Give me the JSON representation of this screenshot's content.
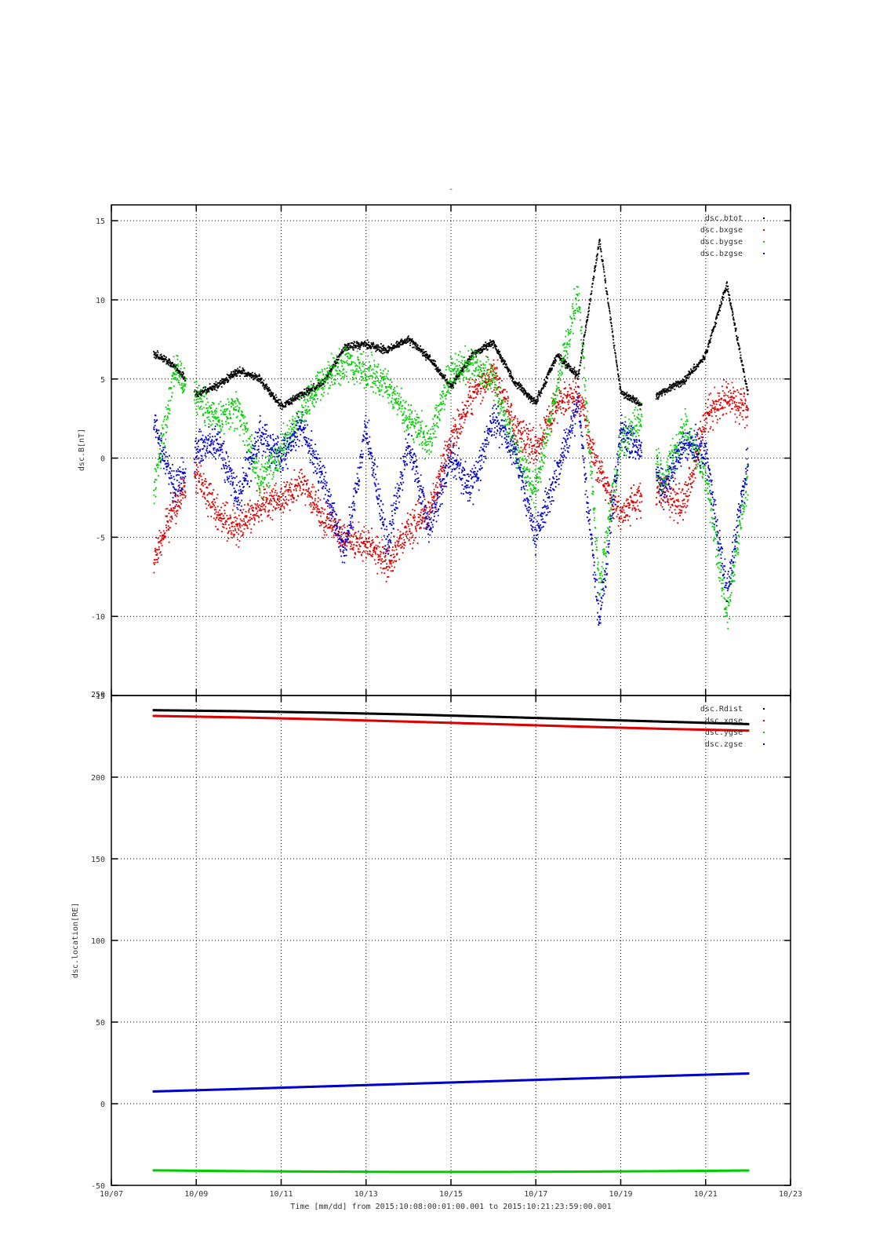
{
  "figure": {
    "title": "-",
    "xlabel": "Time [mm/dd]  from 2015:10:08:00:01:00.001  to  2015:10:21:23:59:00.001"
  },
  "chart_data": [
    {
      "type": "scatter",
      "ylabel": "dsc.B[nT]",
      "xlim": [
        "10/07",
        "10/23"
      ],
      "ylim": [
        -15,
        16
      ],
      "grid": true,
      "legend": "top-right",
      "xticks": [
        "10/07",
        "10/09",
        "10/11",
        "10/13",
        "10/15",
        "10/17",
        "10/19",
        "10/21",
        "10/23"
      ],
      "yticks": [
        -15,
        -10,
        -5,
        0,
        5,
        10,
        15
      ],
      "data_gaps": [
        [
          "10/08 18:00",
          "10/08 23:00"
        ],
        [
          "10/19 12:00",
          "10/19 20:00"
        ]
      ],
      "x": [
        "10/08",
        "10/08 12:00",
        "10/09",
        "10/09 12:00",
        "10/10",
        "10/10 12:00",
        "10/11",
        "10/11 12:00",
        "10/12",
        "10/12 12:00",
        "10/13",
        "10/13 12:00",
        "10/14",
        "10/14 12:00",
        "10/15",
        "10/15 12:00",
        "10/16",
        "10/16 12:00",
        "10/17",
        "10/17 12:00",
        "10/18",
        "10/18 12:00",
        "10/19",
        "10/19 12:00",
        "10/20",
        "10/20 12:00",
        "10/21",
        "10/21 12:00",
        "10/22"
      ],
      "series": [
        {
          "name": "dsc.btot",
          "color": "#000000",
          "values": [
            6.6,
            5.8,
            4.0,
            4.6,
            5.5,
            5.0,
            3.3,
            4.0,
            4.8,
            7.0,
            7.2,
            6.8,
            7.5,
            6.3,
            4.5,
            6.5,
            7.3,
            4.8,
            3.5,
            6.5,
            5.2,
            13.8,
            4.2,
            3.3,
            4.2,
            4.9,
            6.5,
            11.0,
            4.0
          ]
        },
        {
          "name": "dsc.bxgse",
          "color": "#dd0000",
          "values": [
            -6.5,
            -3.0,
            -1.0,
            -3.5,
            -4.5,
            -3.0,
            -2.5,
            -1.5,
            -4.0,
            -5.0,
            -5.5,
            -6.5,
            -4.5,
            -3.5,
            1.0,
            4.0,
            5.5,
            2.0,
            0.5,
            3.5,
            4.0,
            -1.0,
            -3.5,
            -2.5,
            -2.0,
            -3.0,
            2.5,
            4.0,
            3.0
          ]
        },
        {
          "name": "dsc.bygse",
          "color": "#00cc00",
          "values": [
            -2.0,
            5.5,
            4.0,
            2.5,
            3.0,
            -1.5,
            0.5,
            3.0,
            5.0,
            6.0,
            5.5,
            4.5,
            2.5,
            1.0,
            5.5,
            6.0,
            5.0,
            0.5,
            -2.0,
            4.5,
            10.5,
            -8.0,
            1.0,
            2.5,
            -1.5,
            2.0,
            -1.0,
            -10.0,
            -1.0
          ]
        },
        {
          "name": "dsc.bzgse",
          "color": "#0000cc",
          "values": [
            2.0,
            -2.0,
            0.5,
            1.0,
            -2.5,
            1.5,
            0.0,
            2.0,
            -1.5,
            -6.0,
            2.0,
            -5.5,
            1.0,
            -4.5,
            0.0,
            -2.0,
            2.5,
            0.5,
            -5.0,
            -1.0,
            3.5,
            -10.5,
            1.5,
            0.5,
            -2.0,
            1.0,
            0.5,
            -8.5,
            0.0
          ]
        }
      ]
    },
    {
      "type": "scatter",
      "ylabel": "dsc.location[RE]",
      "xlim": [
        "10/07",
        "10/23"
      ],
      "ylim": [
        -50,
        250
      ],
      "grid": true,
      "legend": "top-right",
      "xticks": [
        "10/07",
        "10/09",
        "10/11",
        "10/13",
        "10/15",
        "10/17",
        "10/19",
        "10/21",
        "10/23"
      ],
      "yticks": [
        -50,
        0,
        50,
        100,
        150,
        200,
        250
      ],
      "x": [
        "10/08",
        "10/10",
        "10/12",
        "10/14",
        "10/16",
        "10/18",
        "10/20",
        "10/22"
      ],
      "series": [
        {
          "name": "dsc.Rdist",
          "color": "#000000",
          "values": [
            241.0,
            240.4,
            239.5,
            238.4,
            237.0,
            235.5,
            234.0,
            232.5
          ]
        },
        {
          "name": "dsc.xgse",
          "color": "#dd0000",
          "values": [
            237.5,
            236.6,
            235.4,
            234.0,
            232.5,
            231.0,
            229.6,
            228.5
          ]
        },
        {
          "name": "dsc.ygse",
          "color": "#00cc00",
          "values": [
            -40.8,
            -41.3,
            -41.6,
            -41.8,
            -41.8,
            -41.6,
            -41.3,
            -40.9
          ]
        },
        {
          "name": "dsc.zgse",
          "color": "#0000cc",
          "values": [
            7.5,
            9.0,
            10.6,
            12.2,
            13.8,
            15.4,
            17.0,
            18.5
          ]
        }
      ]
    }
  ]
}
